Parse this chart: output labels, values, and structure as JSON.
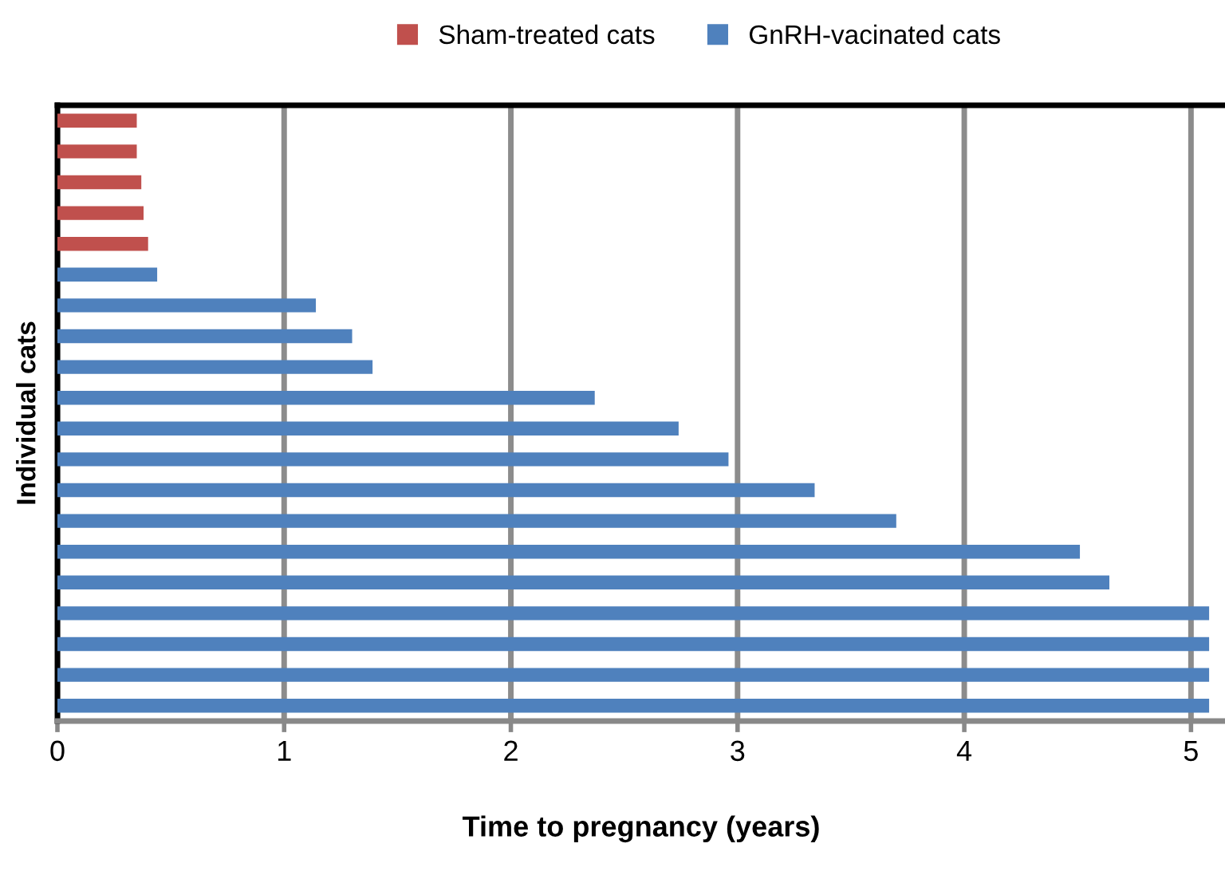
{
  "chart_data": {
    "type": "bar",
    "orientation": "horizontal",
    "xlabel": "Time to pregnancy (years)",
    "ylabel": "Individual cats",
    "categories": [
      null,
      null,
      null,
      null,
      null,
      null,
      null,
      null,
      null,
      null,
      null,
      null,
      null,
      null,
      null,
      null,
      null,
      null,
      null,
      null
    ],
    "series": [
      {
        "name": "Sham-treated cats",
        "color": "#c0504d",
        "values": [
          0.35,
          0.35,
          0.37,
          0.38,
          0.4,
          null,
          null,
          null,
          null,
          null,
          null,
          null,
          null,
          null,
          null,
          null,
          null,
          null,
          null,
          null
        ]
      },
      {
        "name": "GnRH-vacinated cats",
        "color": "#4f81bd",
        "values": [
          null,
          null,
          null,
          null,
          null,
          0.44,
          1.14,
          1.3,
          1.39,
          2.37,
          2.74,
          2.96,
          3.34,
          3.7,
          4.51,
          4.64,
          5.08,
          5.08,
          5.08,
          5.08
        ]
      }
    ],
    "xlim": [
      0,
      5.15
    ],
    "xticks": [
      0,
      1,
      2,
      3,
      4,
      5
    ],
    "grid": "x",
    "legend": "top"
  }
}
